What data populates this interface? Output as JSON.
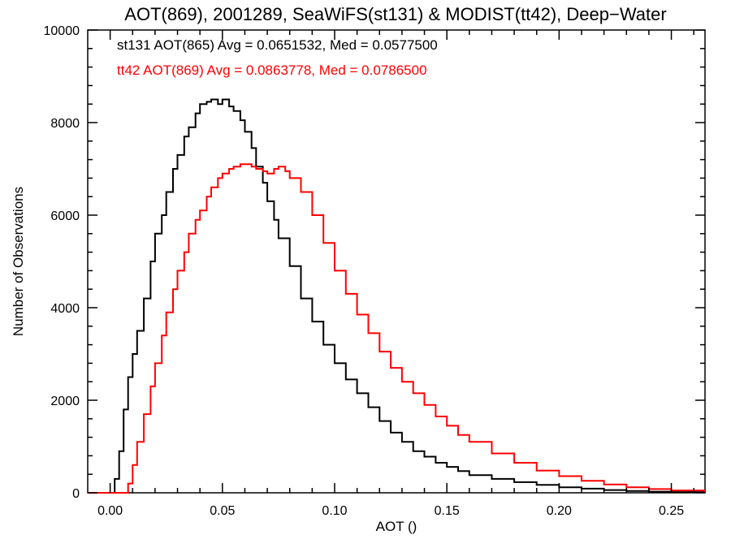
{
  "chart_data": {
    "type": "line",
    "step": true,
    "title": "AOT(869), 2001289, SeaWiFS(st131) & MODIST(tt42), Deep−Water",
    "xlabel": "AOT ()",
    "ylabel": "Number of Observations",
    "xlim": [
      -0.01,
      0.265
    ],
    "ylim": [
      0,
      10000
    ],
    "xticks": [
      0.0,
      0.05,
      0.1,
      0.15,
      0.2,
      0.25
    ],
    "xtick_labels": [
      "0.00",
      "0.05",
      "0.10",
      "0.15",
      "0.20",
      "0.25"
    ],
    "yticks": [
      0,
      2000,
      4000,
      6000,
      8000,
      10000
    ],
    "ytick_labels": [
      "0",
      "2000",
      "4000",
      "6000",
      "8000",
      "10000"
    ],
    "grid": false,
    "annotations": [
      {
        "text": "st131 AOT(865) Avg = 0.0651532, Med = 0.0577500",
        "color": "#000000"
      },
      {
        "text": "tt42 AOT(869) Avg = 0.0863778, Med = 0.0786500",
        "color": "#ff0000"
      }
    ],
    "series": [
      {
        "color": "#000000",
        "x": [
          -0.01,
          0.0,
          0.002,
          0.004,
          0.006,
          0.008,
          0.01,
          0.012,
          0.015,
          0.018,
          0.02,
          0.023,
          0.025,
          0.028,
          0.03,
          0.033,
          0.035,
          0.038,
          0.04,
          0.043,
          0.045,
          0.048,
          0.05,
          0.053,
          0.055,
          0.058,
          0.06,
          0.063,
          0.065,
          0.068,
          0.07,
          0.073,
          0.075,
          0.08,
          0.085,
          0.09,
          0.095,
          0.1,
          0.105,
          0.11,
          0.115,
          0.12,
          0.125,
          0.13,
          0.135,
          0.14,
          0.145,
          0.15,
          0.155,
          0.16,
          0.17,
          0.18,
          0.19,
          0.2,
          0.21,
          0.22,
          0.23,
          0.24,
          0.25,
          0.265
        ],
        "y": [
          0,
          0,
          300,
          900,
          1800,
          2500,
          3000,
          3500,
          4200,
          5000,
          5600,
          6000,
          6500,
          7000,
          7300,
          7700,
          7900,
          8200,
          8400,
          8450,
          8500,
          8400,
          8500,
          8350,
          8250,
          8050,
          7800,
          7450,
          7050,
          6700,
          6300,
          5900,
          5500,
          4900,
          4200,
          3700,
          3200,
          2800,
          2450,
          2150,
          1850,
          1550,
          1300,
          1100,
          900,
          780,
          650,
          560,
          470,
          380,
          300,
          230,
          170,
          120,
          90,
          60,
          40,
          25,
          15,
          5
        ]
      },
      {
        "color": "#ff0000",
        "x": [
          -0.01,
          0.005,
          0.008,
          0.01,
          0.012,
          0.015,
          0.018,
          0.02,
          0.023,
          0.025,
          0.028,
          0.03,
          0.033,
          0.035,
          0.038,
          0.04,
          0.043,
          0.045,
          0.048,
          0.05,
          0.053,
          0.055,
          0.058,
          0.06,
          0.063,
          0.065,
          0.068,
          0.07,
          0.073,
          0.075,
          0.078,
          0.08,
          0.085,
          0.09,
          0.095,
          0.1,
          0.105,
          0.11,
          0.115,
          0.12,
          0.125,
          0.13,
          0.135,
          0.14,
          0.145,
          0.15,
          0.155,
          0.16,
          0.17,
          0.18,
          0.19,
          0.2,
          0.21,
          0.22,
          0.23,
          0.24,
          0.25,
          0.265
        ],
        "y": [
          0,
          0,
          200,
          600,
          1100,
          1700,
          2300,
          2800,
          3400,
          3900,
          4400,
          4800,
          5200,
          5600,
          5900,
          6100,
          6400,
          6600,
          6800,
          6900,
          7000,
          7050,
          7100,
          7100,
          7050,
          7000,
          6950,
          6900,
          7000,
          7050,
          6950,
          6800,
          6500,
          6000,
          5400,
          4800,
          4300,
          3850,
          3450,
          3050,
          2700,
          2400,
          2150,
          1900,
          1650,
          1450,
          1250,
          1100,
          850,
          650,
          480,
          360,
          260,
          180,
          120,
          80,
          50,
          20
        ]
      }
    ]
  }
}
